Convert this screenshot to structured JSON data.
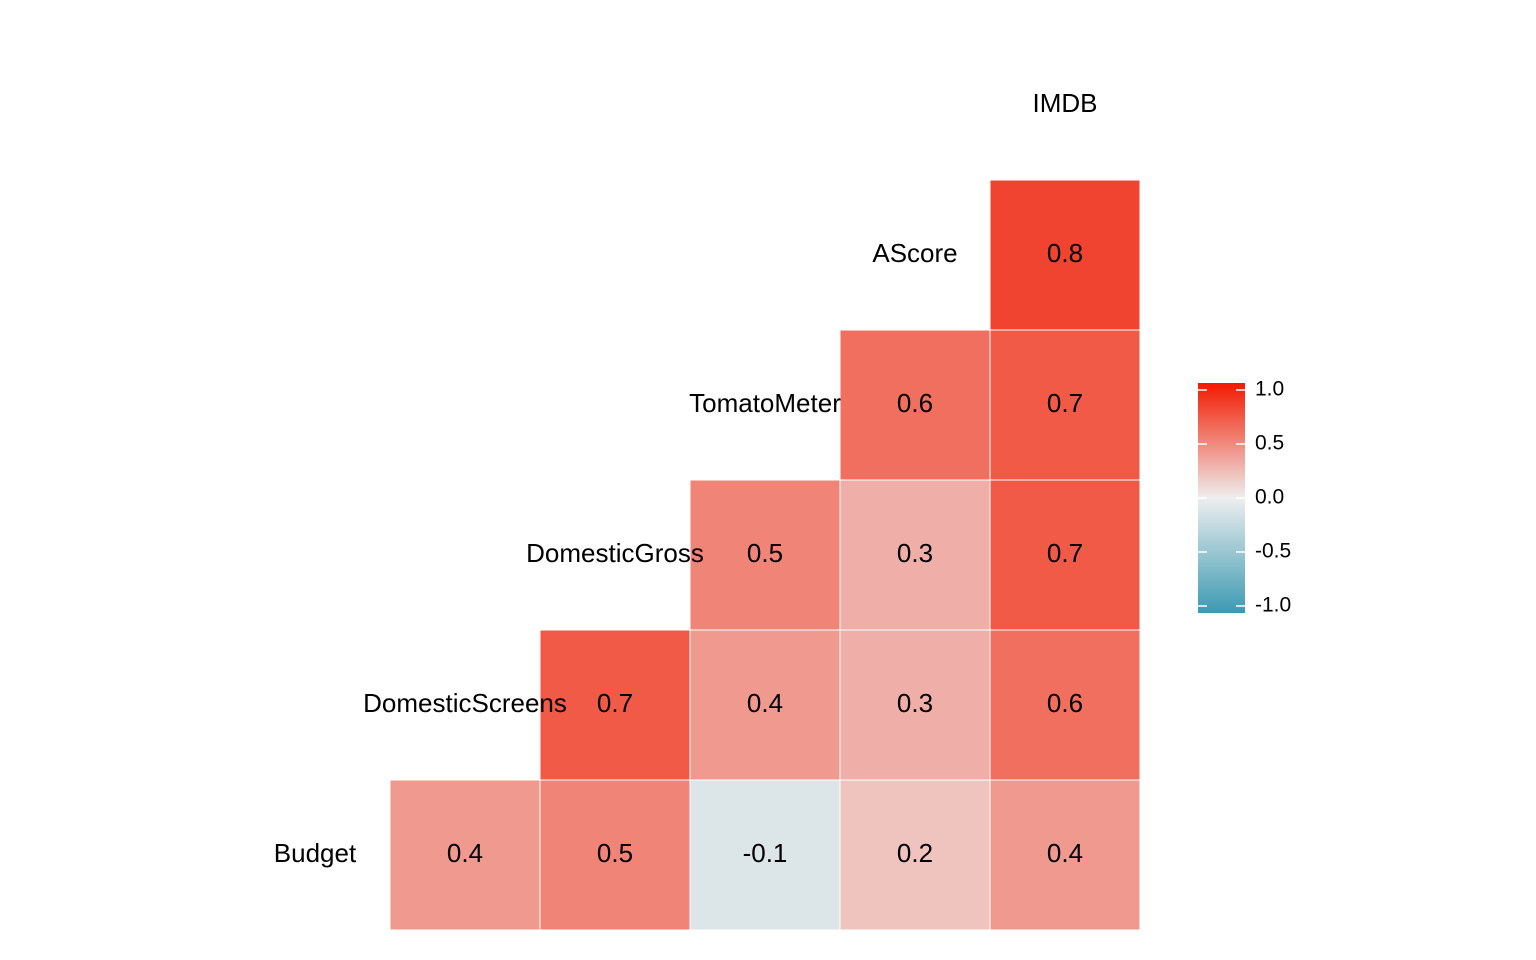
{
  "chart_data": {
    "type": "heatmap",
    "variables": [
      "Budget",
      "DomesticScreens",
      "DomesticGross",
      "TomatoMeter",
      "AScore",
      "IMDB"
    ],
    "values": [
      [
        0.4,
        0.5,
        -0.1,
        0.2,
        0.4
      ],
      [
        0.7,
        0.4,
        0.3,
        0.6
      ],
      [
        0.5,
        0.3,
        0.7
      ],
      [
        0.6,
        0.7
      ],
      [
        0.8
      ]
    ],
    "color_scale": {
      "low": "#3B9AB2",
      "mid": "#EEEEEE",
      "high": "#F21A00"
    },
    "colorbar_lim": [
      -1,
      1
    ],
    "colorbar_ticks": [
      {
        "value": 1,
        "label": "1.0"
      },
      {
        "value": 0.5,
        "label": "0.5"
      },
      {
        "value": 0,
        "label": "0.0"
      },
      {
        "value": -0.5,
        "label": "-0.5"
      },
      {
        "value": -1,
        "label": "-1.0"
      }
    ]
  }
}
